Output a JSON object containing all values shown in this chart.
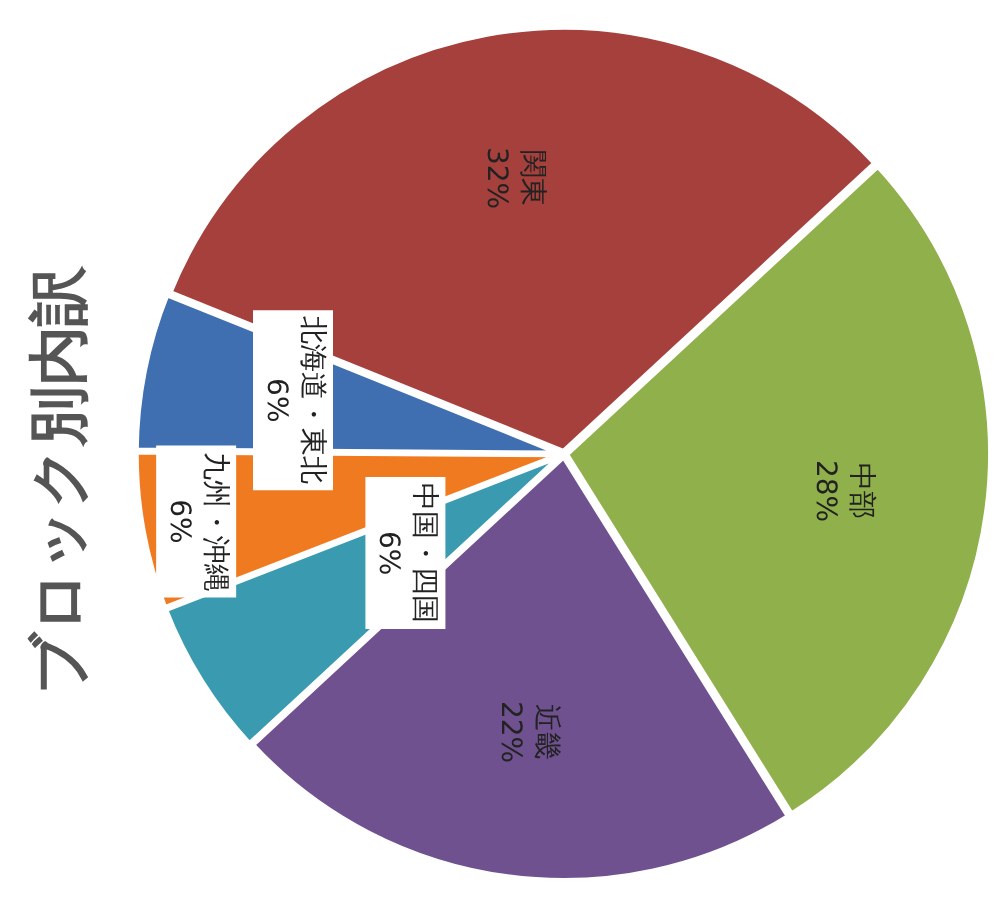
{
  "chart_data": {
    "type": "pie",
    "title": "ブロック別内訳",
    "categories": [
      "関東",
      "中部",
      "近畿",
      "中国・四国",
      "九州・沖縄",
      "北海道・東北"
    ],
    "values": [
      32,
      28,
      22,
      6,
      6,
      6
    ],
    "value_labels": [
      "32%",
      "28%",
      "22%",
      "6%",
      "6%",
      "6%"
    ],
    "colors": [
      "#a5403c",
      "#8fb04a",
      "#6f5190",
      "#3a9bb0",
      "#f07a20",
      "#3f6fb0"
    ],
    "legend": false
  }
}
